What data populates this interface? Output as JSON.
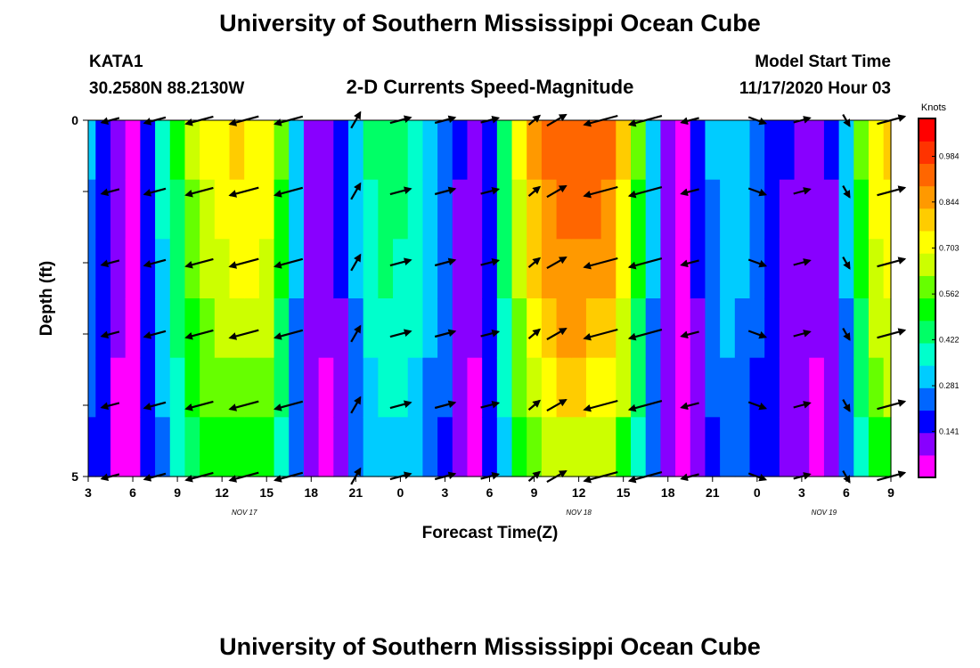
{
  "page": {
    "title_top": "University of Southern Mississippi Ocean Cube",
    "title_bottom": "University of Southern Mississippi Ocean Cube",
    "station": "KATA1",
    "location": "30.2580N 88.2130W",
    "product": "2-D Currents Speed-Magnitude",
    "model_start_label": "Model Start Time",
    "model_start_value": "11/17/2020 Hour 03"
  },
  "chart_data": {
    "type": "heatmap",
    "title": "2-D Currents Speed-Magnitude",
    "xlabel": "Forecast Time(Z)",
    "ylabel": "Depth (ft)",
    "x_tick_labels": [
      "3",
      "6",
      "9",
      "12",
      "15",
      "18",
      "21",
      "0",
      "3",
      "6",
      "9",
      "12",
      "15",
      "18",
      "21",
      "0",
      "3",
      "6",
      "9"
    ],
    "x_range_hours": [
      0,
      54
    ],
    "date_labels": [
      {
        "label": "NOV 17",
        "hour": 10.5
      },
      {
        "label": "NOV 18",
        "hour": 33
      },
      {
        "label": "NOV 19",
        "hour": 49.5
      }
    ],
    "y_tick_labels": [
      "0",
      "5"
    ],
    "ylim": [
      0,
      5
    ],
    "colorbar": {
      "units": "Knots",
      "tick_labels": [
        "0.984",
        "0.844",
        "0.703",
        "0.562",
        "0.422",
        "0.281",
        "0.141"
      ],
      "range": [
        0.0,
        1.1
      ],
      "palette": [
        "#ff00ff",
        "#8800ff",
        "#0000ff",
        "#0066ff",
        "#00ccff",
        "#00ffcc",
        "#00ff66",
        "#00ff00",
        "#66ff00",
        "#ccff00",
        "#ffff00",
        "#ffcc00",
        "#ff9900",
        "#ff6600",
        "#ff3300",
        "#ff0000"
      ]
    },
    "time_hours": [
      0,
      1,
      2,
      3,
      4,
      5,
      6,
      7,
      8,
      9,
      10,
      11,
      12,
      13,
      14,
      15,
      16,
      17,
      18,
      19,
      20,
      21,
      22,
      23,
      24,
      25,
      26,
      27,
      28,
      29,
      30,
      31,
      32,
      33,
      34,
      35,
      36,
      37,
      38,
      39,
      40,
      41,
      42,
      43,
      44,
      45,
      46,
      47,
      48,
      49,
      50,
      51,
      52,
      53,
      54
    ],
    "speed_profile_knots": [
      0.28,
      0.2,
      0.08,
      0.02,
      0.2,
      0.36,
      0.5,
      0.62,
      0.7,
      0.74,
      0.76,
      0.75,
      0.72,
      0.55,
      0.3,
      0.12,
      0.08,
      0.15,
      0.3,
      0.42,
      0.45,
      0.44,
      0.4,
      0.34,
      0.26,
      0.14,
      0.08,
      0.2,
      0.45,
      0.7,
      0.85,
      0.92,
      0.95,
      0.95,
      0.94,
      0.9,
      0.78,
      0.55,
      0.3,
      0.12,
      0.05,
      0.15,
      0.28,
      0.32,
      0.3,
      0.25,
      0.2,
      0.14,
      0.1,
      0.08,
      0.14,
      0.3,
      0.55,
      0.72,
      0.78
    ],
    "depth_factors": [
      1.0,
      0.96,
      0.92,
      0.87,
      0.8,
      0.7
    ],
    "arrow_times_hours": [
      1.5,
      4.5,
      7.5,
      10.5,
      13.5,
      18,
      21,
      24,
      27,
      30,
      31.5,
      34.5,
      37.5,
      40.5,
      45,
      48,
      51,
      54
    ],
    "arrow_depths_ft": [
      0,
      1,
      2,
      3,
      4,
      5
    ],
    "arrow_directions_deg": [
      195,
      195,
      195,
      195,
      195,
      60,
      15,
      15,
      15,
      40,
      30,
      195,
      195,
      195,
      340,
      15,
      300,
      15
    ],
    "arrow_lengths_knots": [
      0.3,
      0.45,
      0.7,
      0.76,
      0.72,
      0.3,
      0.42,
      0.4,
      0.3,
      0.14,
      0.45,
      0.95,
      0.92,
      0.3,
      0.3,
      0.25,
      0.1,
      0.72
    ]
  }
}
